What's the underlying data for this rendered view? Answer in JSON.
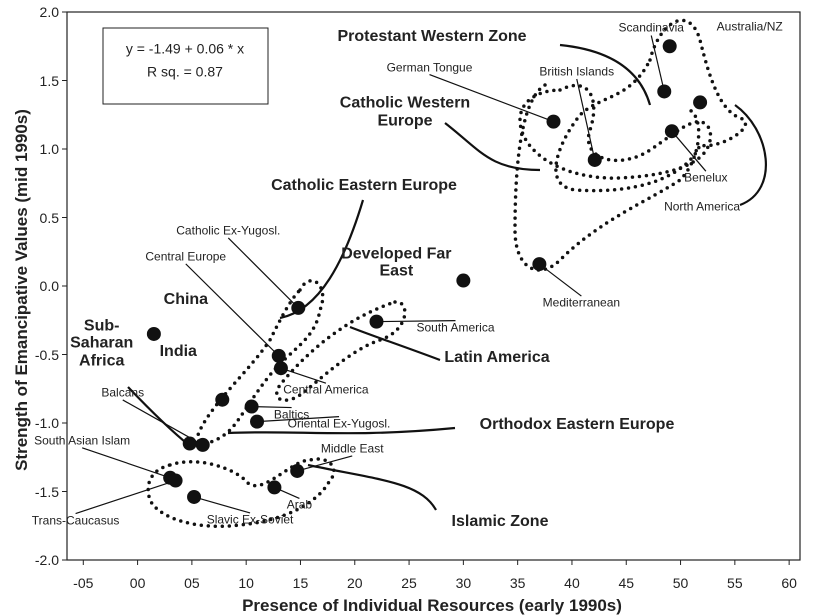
{
  "chart_data": {
    "type": "scatter",
    "x_label": "Presence of Individual Resources (early 1990s)",
    "y_label": "Strength of Emancipative Values (mid 1990s)",
    "xlim": [
      -6.5,
      61
    ],
    "ylim": [
      -2,
      2
    ],
    "xticks": [
      {
        "value": -5,
        "label": "-05"
      },
      {
        "value": 0,
        "label": "00"
      },
      {
        "value": 5,
        "label": "05"
      },
      10,
      15,
      20,
      25,
      30,
      35,
      40,
      45,
      50,
      55,
      60
    ],
    "yticks": [
      {
        "value": -2,
        "label": "-2.0"
      },
      -1.5,
      {
        "value": -1,
        "label": "-1.0"
      },
      -0.5,
      {
        "value": 0,
        "label": "0.0"
      },
      0.5,
      {
        "value": 1,
        "label": "1.0"
      },
      1.5,
      {
        "value": 2,
        "label": "2.0"
      }
    ],
    "equation": [
      "y = -1.49 + 0.06 * x",
      "R sq. = 0.87"
    ],
    "color": "#111111",
    "points": {
      "names": [
        "Australia/NZ",
        "Scandinavia",
        "North America",
        "German Tongue",
        "Benelux",
        "British Islands",
        "Mediterranean",
        "Developed Far East",
        "Catholic Ex-Yugosl.",
        "South America",
        "China",
        "Central Europe",
        "Central America",
        "India",
        "Baltics",
        "Oriental Ex-Yugosl.",
        "Sub-Saharan Africa",
        "Balcans",
        "South Asian Islam",
        "Trans-Caucasus",
        "Middle East",
        "Arab",
        "Slavic Ex-Soviet"
      ],
      "x": [
        49,
        48.5,
        51.8,
        38.3,
        49.2,
        42.1,
        37,
        30,
        14.8,
        22,
        1.5,
        13,
        13.2,
        7.8,
        10.5,
        11,
        4.8,
        6,
        3,
        3.5,
        14.7,
        12.6,
        5.2
      ],
      "y": [
        1.75,
        1.42,
        1.34,
        1.2,
        1.13,
        0.92,
        0.16,
        0.04,
        -0.16,
        -0.26,
        -0.35,
        -0.51,
        -0.6,
        -0.83,
        -0.88,
        -0.99,
        -1.15,
        -1.16,
        -1.4,
        -1.42,
        -1.35,
        -1.47,
        -1.54
      ]
    },
    "annotations": [
      "Protestant Western Zone",
      "Catholic Western Europe",
      "Catholic Eastern Europe",
      "Latin America",
      "Orthodox Eastern Europe",
      "Islamic Zone"
    ]
  }
}
